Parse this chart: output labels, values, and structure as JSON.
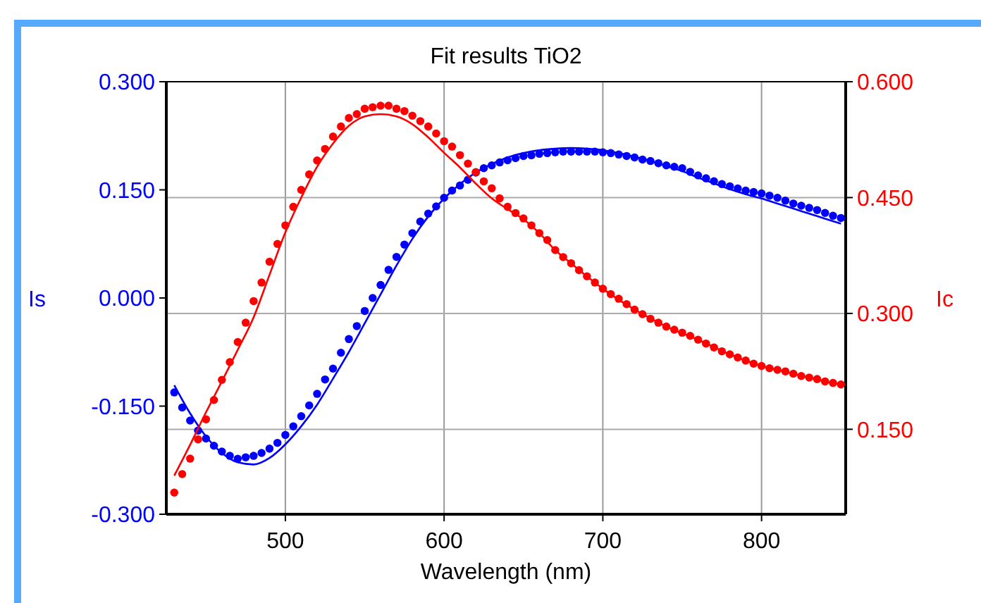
{
  "chart_data": {
    "type": "scatter",
    "title": "Fit results TiO2",
    "xlabel": "Wavelength (nm)",
    "ylabel": "Is",
    "y2label": "Ic",
    "xlim": [
      425,
      853
    ],
    "xticks": [
      500,
      600,
      700,
      800
    ],
    "ylim": [
      -0.3,
      0.3
    ],
    "yticks": [
      {
        "value": -0.3,
        "label": "-0.300"
      },
      {
        "value": -0.15,
        "label": "-0.150"
      },
      {
        "value": 0,
        "label": "0.000"
      },
      {
        "value": 0.15,
        "label": "0.150"
      },
      {
        "value": 0.3,
        "label": "0.300"
      }
    ],
    "y2lim": [
      0.04,
      0.6
    ],
    "y2ticks": [
      {
        "value": 0.15,
        "label": "0.150"
      },
      {
        "value": 0.3,
        "label": "0.300"
      },
      {
        "value": 0.45,
        "label": "0.450"
      },
      {
        "value": 0.6,
        "label": "0.600"
      }
    ],
    "grid": true,
    "marker": "circle",
    "series": [
      {
        "color": "#0000ff",
        "x": [
          430,
          435,
          440,
          445,
          450,
          455,
          460,
          465,
          470,
          475,
          480,
          485,
          490,
          495,
          500,
          505,
          510,
          515,
          520,
          525,
          530,
          535,
          540,
          545,
          550,
          555,
          560,
          565,
          570,
          575,
          580,
          585,
          590,
          595,
          600,
          605,
          610,
          615,
          620,
          625,
          630,
          635,
          640,
          645,
          650,
          655,
          660,
          665,
          670,
          675,
          680,
          685,
          690,
          695,
          700,
          705,
          710,
          715,
          720,
          725,
          730,
          735,
          740,
          745,
          750,
          755,
          760,
          765,
          770,
          775,
          780,
          785,
          790,
          795,
          800,
          805,
          810,
          815,
          820,
          825,
          830,
          835,
          840,
          845,
          850
        ],
        "values": [
          -0.131,
          -0.152,
          -0.17,
          -0.184,
          -0.195,
          -0.205,
          -0.213,
          -0.219,
          -0.223,
          -0.221,
          -0.219,
          -0.215,
          -0.209,
          -0.201,
          -0.19,
          -0.178,
          -0.164,
          -0.149,
          -0.133,
          -0.113,
          -0.098,
          -0.076,
          -0.057,
          -0.039,
          -0.018,
          0.0,
          0.018,
          0.039,
          0.057,
          0.074,
          0.09,
          0.106,
          0.117,
          0.127,
          0.139,
          0.149,
          0.156,
          0.164,
          0.174,
          0.18,
          0.184,
          0.188,
          0.191,
          0.194,
          0.197,
          0.198,
          0.2,
          0.201,
          0.202,
          0.203,
          0.203,
          0.203,
          0.203,
          0.203,
          0.202,
          0.201,
          0.199,
          0.197,
          0.195,
          0.192,
          0.19,
          0.187,
          0.184,
          0.182,
          0.18,
          0.175,
          0.17,
          0.166,
          0.162,
          0.158,
          0.155,
          0.152,
          0.149,
          0.147,
          0.145,
          0.142,
          0.139,
          0.135,
          0.131,
          0.128,
          0.125,
          0.122,
          0.118,
          0.114,
          0.111
        ]
      },
      {
        "type": "line",
        "color": "#0000ff",
        "marker": "none",
        "x": [
          430,
          440,
          450,
          460,
          470,
          480,
          490,
          500,
          510,
          520,
          530,
          540,
          550,
          560,
          570,
          580,
          590,
          600,
          610,
          620,
          630,
          640,
          650,
          660,
          670,
          680,
          690,
          700,
          710,
          720,
          730,
          740,
          750,
          760,
          770,
          780,
          790,
          800,
          810,
          820,
          830,
          840,
          850
        ],
        "values": [
          -0.121,
          -0.16,
          -0.192,
          -0.215,
          -0.228,
          -0.231,
          -0.222,
          -0.203,
          -0.178,
          -0.148,
          -0.112,
          -0.075,
          -0.035,
          0.005,
          0.045,
          0.082,
          0.113,
          0.138,
          0.158,
          0.174,
          0.186,
          0.195,
          0.201,
          0.205,
          0.207,
          0.208,
          0.207,
          0.205,
          0.201,
          0.196,
          0.19,
          0.183,
          0.176,
          0.167,
          0.159,
          0.151,
          0.144,
          0.138,
          0.131,
          0.124,
          0.117,
          0.11,
          0.103
        ]
      },
      {
        "color": "#ff0000",
        "axis": "y2",
        "x": [
          430,
          435,
          440,
          445,
          450,
          455,
          460,
          465,
          470,
          475,
          480,
          485,
          490,
          495,
          500,
          505,
          510,
          515,
          520,
          525,
          530,
          535,
          540,
          545,
          550,
          555,
          560,
          565,
          570,
          575,
          580,
          585,
          590,
          595,
          600,
          605,
          610,
          615,
          620,
          625,
          630,
          635,
          640,
          645,
          650,
          655,
          660,
          665,
          670,
          675,
          680,
          685,
          690,
          695,
          700,
          705,
          710,
          715,
          720,
          725,
          730,
          735,
          740,
          745,
          750,
          755,
          760,
          765,
          770,
          775,
          780,
          785,
          790,
          795,
          800,
          805,
          810,
          815,
          820,
          825,
          830,
          835,
          840,
          845,
          850
        ],
        "values": [
          0.068,
          0.092,
          0.112,
          0.137,
          0.163,
          0.188,
          0.214,
          0.237,
          0.263,
          0.288,
          0.316,
          0.34,
          0.367,
          0.39,
          0.414,
          0.438,
          0.46,
          0.48,
          0.498,
          0.513,
          0.529,
          0.542,
          0.553,
          0.558,
          0.565,
          0.567,
          0.569,
          0.569,
          0.565,
          0.562,
          0.556,
          0.549,
          0.542,
          0.533,
          0.523,
          0.516,
          0.505,
          0.494,
          0.483,
          0.471,
          0.462,
          0.449,
          0.438,
          0.43,
          0.423,
          0.414,
          0.404,
          0.395,
          0.382,
          0.373,
          0.365,
          0.356,
          0.348,
          0.34,
          0.332,
          0.325,
          0.319,
          0.312,
          0.305,
          0.299,
          0.293,
          0.288,
          0.283,
          0.279,
          0.275,
          0.271,
          0.266,
          0.261,
          0.256,
          0.251,
          0.247,
          0.243,
          0.239,
          0.235,
          0.232,
          0.229,
          0.227,
          0.225,
          0.222,
          0.219,
          0.217,
          0.215,
          0.212,
          0.21,
          0.208
        ]
      },
      {
        "type": "line",
        "color": "#ff0000",
        "axis": "y2",
        "marker": "none",
        "x": [
          430,
          440,
          450,
          460,
          470,
          480,
          490,
          500,
          510,
          520,
          530,
          540,
          550,
          560,
          570,
          580,
          590,
          600,
          610,
          620,
          630,
          640,
          650,
          660,
          670,
          680,
          690,
          700,
          720,
          740,
          760,
          780,
          800,
          820,
          840,
          850
        ],
        "values": [
          0.09,
          0.13,
          0.172,
          0.212,
          0.253,
          0.295,
          0.35,
          0.405,
          0.45,
          0.49,
          0.52,
          0.543,
          0.555,
          0.558,
          0.555,
          0.545,
          0.528,
          0.508,
          0.489,
          0.468,
          0.449,
          0.435,
          0.422,
          0.404,
          0.382,
          0.365,
          0.348,
          0.332,
          0.305,
          0.283,
          0.266,
          0.247,
          0.232,
          0.222,
          0.212,
          0.208
        ]
      }
    ]
  }
}
